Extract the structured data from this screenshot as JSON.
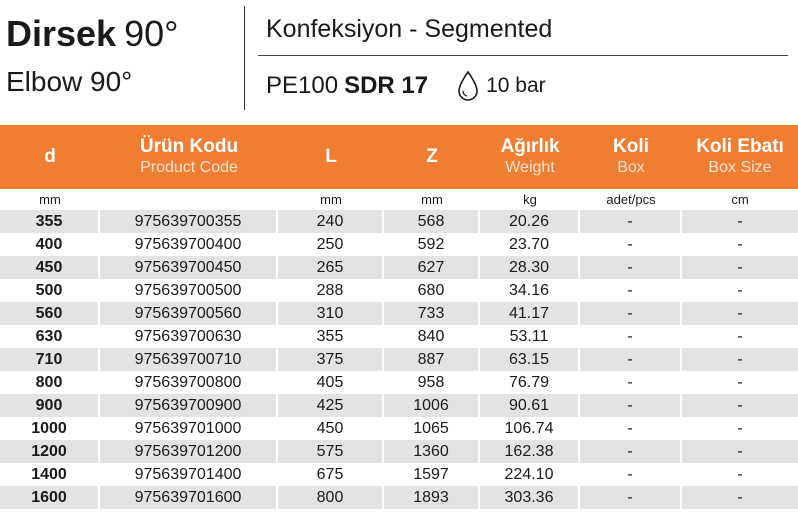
{
  "header": {
    "title_tr_bold": "Dirsek",
    "title_tr_light": "90°",
    "title_en": "Elbow 90°",
    "subtitle": "Konfeksiyon - Segmented",
    "material": "PE100",
    "sdr": "SDR 17",
    "pressure": "10 bar",
    "pressure_icon": "water-drop-icon",
    "accent_color": "#ef7d32"
  },
  "table": {
    "columns": [
      {
        "tr": "d",
        "en": ""
      },
      {
        "tr": "Ürün Kodu",
        "en": "Product Code"
      },
      {
        "tr": "L",
        "en": ""
      },
      {
        "tr": "Z",
        "en": ""
      },
      {
        "tr": "Ağırlık",
        "en": "Weight"
      },
      {
        "tr": "Koli",
        "en": "Box"
      },
      {
        "tr": "Koli Ebatı",
        "en": "Box Size"
      }
    ],
    "units": [
      "mm",
      "",
      "mm",
      "mm",
      "kg",
      "adet/pcs",
      "cm"
    ],
    "rows": [
      [
        "355",
        "975639700355",
        "240",
        "568",
        "20.26",
        "-",
        "-"
      ],
      [
        "400",
        "975639700400",
        "250",
        "592",
        "23.70",
        "-",
        "-"
      ],
      [
        "450",
        "975639700450",
        "265",
        "627",
        "28.30",
        "-",
        "-"
      ],
      [
        "500",
        "975639700500",
        "288",
        "680",
        "34.16",
        "-",
        "-"
      ],
      [
        "560",
        "975639700560",
        "310",
        "733",
        "41.17",
        "-",
        "-"
      ],
      [
        "630",
        "975639700630",
        "355",
        "840",
        "53.11",
        "-",
        "-"
      ],
      [
        "710",
        "975639700710",
        "375",
        "887",
        "63.15",
        "-",
        "-"
      ],
      [
        "800",
        "975639700800",
        "405",
        "958",
        "76.79",
        "-",
        "-"
      ],
      [
        "900",
        "975639700900",
        "425",
        "1006",
        "90.61",
        "-",
        "-"
      ],
      [
        "1000",
        "975639701000",
        "450",
        "1065",
        "106.74",
        "-",
        "-"
      ],
      [
        "1200",
        "975639701200",
        "575",
        "1360",
        "162.38",
        "-",
        "-"
      ],
      [
        "1400",
        "975639701400",
        "675",
        "1597",
        "224.10",
        "-",
        "-"
      ],
      [
        "1600",
        "975639701600",
        "800",
        "1893",
        "303.36",
        "-",
        "-"
      ]
    ]
  }
}
